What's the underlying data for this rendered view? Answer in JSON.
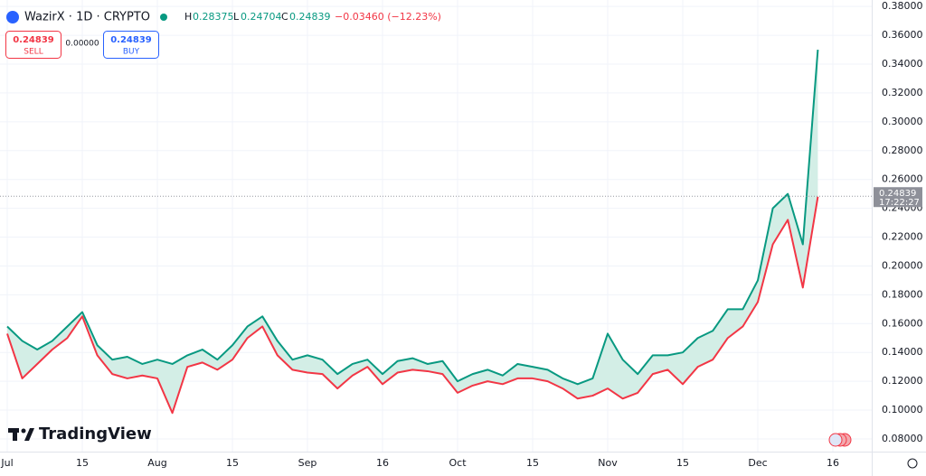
{
  "chart_data": {
    "type": "range",
    "header": {
      "symbol": "WazirX · 1D · CRYPTO",
      "h_label": "H",
      "h_value": 0.28375,
      "l_label": "L",
      "l_value": 0.24704,
      "c_label": "C",
      "c_value": 0.24839,
      "change": "−0.03460 (−12.23%)"
    },
    "trade_panel": {
      "sell_price": "0.24839",
      "sell_label": "SELL",
      "spread": "0.00000",
      "buy_price": "0.24839",
      "buy_label": "BUY"
    },
    "brand": "TradingView",
    "last_price": {
      "value": 0.24839,
      "label": "0.24839"
    },
    "countdown": "17:22:27",
    "categories": [
      "Jul",
      null,
      null,
      null,
      null,
      "15",
      null,
      null,
      null,
      null,
      "Aug",
      null,
      null,
      null,
      null,
      "15",
      null,
      null,
      null,
      null,
      "Sep",
      null,
      null,
      null,
      null,
      "16",
      null,
      null,
      null,
      null,
      "Oct",
      null,
      null,
      null,
      null,
      "15",
      null,
      null,
      null,
      null,
      "Nov",
      null,
      null,
      null,
      null,
      "15",
      null,
      null,
      null,
      null,
      "Dec",
      null,
      null,
      null,
      null,
      "16"
    ],
    "series": [
      {
        "name": "High",
        "color": "#089981",
        "values": [
          0.158,
          0.148,
          0.142,
          0.148,
          0.158,
          0.168,
          0.145,
          0.135,
          0.137,
          0.132,
          0.135,
          0.132,
          0.138,
          0.142,
          0.135,
          0.145,
          0.158,
          0.165,
          0.148,
          0.135,
          0.138,
          0.135,
          0.125,
          0.132,
          0.135,
          0.125,
          0.134,
          0.136,
          0.132,
          0.134,
          0.12,
          0.125,
          0.128,
          0.124,
          0.132,
          0.13,
          0.128,
          0.122,
          0.118,
          0.122,
          0.153,
          0.135,
          0.125,
          0.138,
          0.138,
          0.14,
          0.15,
          0.155,
          0.17,
          0.17,
          0.19,
          0.24,
          0.25,
          0.215,
          0.35,
          null
        ]
      },
      {
        "name": "Low",
        "color": "#f23645",
        "values": [
          0.153,
          0.122,
          0.132,
          0.142,
          0.15,
          0.165,
          0.138,
          0.125,
          0.122,
          0.124,
          0.122,
          0.098,
          0.13,
          0.133,
          0.128,
          0.135,
          0.15,
          0.158,
          0.138,
          0.128,
          0.126,
          0.125,
          0.115,
          0.124,
          0.13,
          0.118,
          0.126,
          0.128,
          0.127,
          0.125,
          0.112,
          0.117,
          0.12,
          0.118,
          0.122,
          0.122,
          0.12,
          0.115,
          0.108,
          0.11,
          0.115,
          0.108,
          0.112,
          0.125,
          0.128,
          0.118,
          0.13,
          0.135,
          0.15,
          0.158,
          0.175,
          0.215,
          0.232,
          0.185,
          0.248,
          null
        ]
      }
    ],
    "band_color": "#d3eee6",
    "ylim": [
      0.0712,
      0.3845
    ],
    "yticks": [
      {
        "value": 0.08,
        "label": "0.08000"
      },
      {
        "value": 0.1,
        "label": "0.10000"
      },
      {
        "value": 0.12,
        "label": "0.12000"
      },
      {
        "value": 0.14,
        "label": "0.14000"
      },
      {
        "value": 0.16,
        "label": "0.16000"
      },
      {
        "value": 0.18,
        "label": "0.18000"
      },
      {
        "value": 0.2,
        "label": "0.20000"
      },
      {
        "value": 0.22,
        "label": "0.22000"
      },
      {
        "value": 0.24,
        "label": "0.24000"
      },
      {
        "value": 0.26,
        "label": "0.26000"
      },
      {
        "value": 0.28,
        "label": "0.28000"
      },
      {
        "value": 0.3,
        "label": "0.30000"
      },
      {
        "value": 0.32,
        "label": "0.32000"
      },
      {
        "value": 0.34,
        "label": "0.34000"
      },
      {
        "value": 0.36,
        "label": "0.36000"
      },
      {
        "value": 0.38,
        "label": "0.38000"
      }
    ],
    "grid": true
  }
}
